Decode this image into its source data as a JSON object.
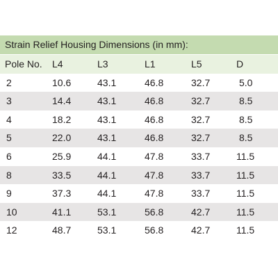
{
  "table": {
    "title": "Strain Relief Housing Dimensions (in mm):",
    "header": [
      "Pole No.",
      "L4",
      "L3",
      "L1",
      "L5",
      "D"
    ],
    "rows": [
      [
        "2",
        "10.6",
        "43.1",
        "46.8",
        "32.7",
        "5.0"
      ],
      [
        "3",
        "14.4",
        "43.1",
        "46.8",
        "32.7",
        "8.5"
      ],
      [
        "4",
        "18.2",
        "43.1",
        "46.8",
        "32.7",
        "8.5"
      ],
      [
        "5",
        "22.0",
        "43.1",
        "46.8",
        "32.7",
        "8.5"
      ],
      [
        "6",
        "25.9",
        "44.1",
        "47.8",
        "33.7",
        "11.5"
      ],
      [
        "8",
        "33.5",
        "44.1",
        "47.8",
        "33.7",
        "11.5"
      ],
      [
        "9",
        "37.3",
        "44.1",
        "47.8",
        "33.7",
        "11.5"
      ],
      [
        "10",
        "41.1",
        "53.1",
        "56.8",
        "42.7",
        "11.5"
      ],
      [
        "12",
        "48.7",
        "53.1",
        "56.8",
        "42.7",
        "11.5"
      ]
    ]
  }
}
